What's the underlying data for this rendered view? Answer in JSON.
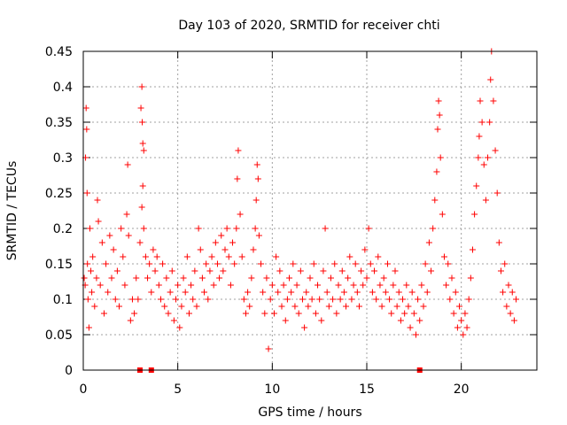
{
  "chart_data": {
    "type": "scatter",
    "title": "Day 103 of 2020, SRMTID for receiver chti",
    "xlabel": "GPS time / hours",
    "ylabel": "SRMTID / TECUs",
    "xlim": [
      0,
      24
    ],
    "ylim": [
      0,
      0.45
    ],
    "x_ticks": [
      0,
      5,
      10,
      15,
      20
    ],
    "x_tick_labels": [
      "0",
      "5",
      "10",
      "15",
      "20"
    ],
    "y_ticks": [
      0,
      0.05,
      0.1,
      0.15,
      0.2,
      0.25,
      0.3,
      0.35,
      0.4,
      0.45
    ],
    "y_tick_labels": [
      "0",
      "0.05",
      "0.1",
      "0.15",
      "0.2",
      "0.25",
      "0.3",
      "0.35",
      "0.4",
      "0.45"
    ],
    "grid": true,
    "legend": "none",
    "marker": "+",
    "color": "#ff0000",
    "series": [
      {
        "marker": "+",
        "points": [
          [
            0.05,
            0.13
          ],
          [
            0.1,
            0.12
          ],
          [
            0.12,
            0.3
          ],
          [
            0.15,
            0.37
          ],
          [
            0.18,
            0.34
          ],
          [
            0.2,
            0.25
          ],
          [
            0.22,
            0.15
          ],
          [
            0.25,
            0.1
          ],
          [
            0.3,
            0.06
          ],
          [
            0.35,
            0.2
          ],
          [
            0.4,
            0.14
          ],
          [
            0.45,
            0.11
          ],
          [
            0.5,
            0.16
          ],
          [
            0.6,
            0.09
          ],
          [
            0.7,
            0.13
          ],
          [
            0.75,
            0.24
          ],
          [
            0.8,
            0.21
          ],
          [
            0.9,
            0.12
          ],
          [
            1.0,
            0.18
          ],
          [
            1.1,
            0.08
          ],
          [
            1.2,
            0.15
          ],
          [
            1.3,
            0.11
          ],
          [
            1.4,
            0.19
          ],
          [
            1.5,
            0.13
          ],
          [
            1.6,
            0.17
          ],
          [
            1.7,
            0.1
          ],
          [
            1.8,
            0.14
          ],
          [
            1.9,
            0.09
          ],
          [
            2.0,
            0.2
          ],
          [
            2.1,
            0.16
          ],
          [
            2.2,
            0.12
          ],
          [
            2.3,
            0.22
          ],
          [
            2.35,
            0.29
          ],
          [
            2.4,
            0.19
          ],
          [
            2.5,
            0.07
          ],
          [
            2.6,
            0.1
          ],
          [
            2.7,
            0.08
          ],
          [
            2.8,
            0.13
          ],
          [
            2.9,
            0.1
          ],
          [
            3.0,
            0.18
          ],
          [
            3.1,
            0.23
          ],
          [
            3.15,
            0.26
          ],
          [
            3.2,
            0.2
          ],
          [
            3.3,
            0.16
          ],
          [
            3.4,
            0.13
          ],
          [
            3.5,
            0.15
          ],
          [
            3.6,
            0.11
          ],
          [
            3.7,
            0.17
          ],
          [
            3.8,
            0.14
          ],
          [
            3.9,
            0.16
          ],
          [
            3.05,
            0.37
          ],
          [
            3.1,
            0.4
          ],
          [
            3.12,
            0.35
          ],
          [
            3.15,
            0.32
          ],
          [
            3.2,
            0.31
          ],
          [
            4.0,
            0.12
          ],
          [
            4.1,
            0.1
          ],
          [
            4.2,
            0.15
          ],
          [
            4.3,
            0.09
          ],
          [
            4.4,
            0.13
          ],
          [
            4.5,
            0.08
          ],
          [
            4.6,
            0.11
          ],
          [
            4.7,
            0.14
          ],
          [
            4.8,
            0.07
          ],
          [
            4.9,
            0.1
          ],
          [
            5.0,
            0.12
          ],
          [
            5.1,
            0.06
          ],
          [
            5.2,
            0.09
          ],
          [
            5.3,
            0.13
          ],
          [
            5.4,
            0.11
          ],
          [
            5.5,
            0.16
          ],
          [
            5.6,
            0.08
          ],
          [
            5.7,
            0.12
          ],
          [
            5.8,
            0.1
          ],
          [
            5.9,
            0.14
          ],
          [
            6.0,
            0.09
          ],
          [
            6.1,
            0.2
          ],
          [
            6.2,
            0.17
          ],
          [
            6.3,
            0.13
          ],
          [
            6.4,
            0.11
          ],
          [
            6.5,
            0.15
          ],
          [
            6.6,
            0.1
          ],
          [
            6.7,
            0.14
          ],
          [
            6.8,
            0.16
          ],
          [
            6.9,
            0.12
          ],
          [
            7.0,
            0.18
          ],
          [
            7.1,
            0.15
          ],
          [
            7.2,
            0.13
          ],
          [
            7.3,
            0.19
          ],
          [
            7.4,
            0.14
          ],
          [
            7.5,
            0.17
          ],
          [
            7.6,
            0.2
          ],
          [
            7.7,
            0.16
          ],
          [
            7.8,
            0.12
          ],
          [
            7.9,
            0.18
          ],
          [
            8.0,
            0.15
          ],
          [
            8.1,
            0.2
          ],
          [
            8.15,
            0.27
          ],
          [
            8.2,
            0.31
          ],
          [
            8.3,
            0.22
          ],
          [
            8.4,
            0.16
          ],
          [
            8.5,
            0.1
          ],
          [
            8.6,
            0.08
          ],
          [
            8.7,
            0.11
          ],
          [
            8.8,
            0.09
          ],
          [
            8.9,
            0.13
          ],
          [
            9.0,
            0.17
          ],
          [
            9.1,
            0.2
          ],
          [
            9.15,
            0.24
          ],
          [
            9.2,
            0.29
          ],
          [
            9.25,
            0.27
          ],
          [
            9.3,
            0.19
          ],
          [
            9.4,
            0.15
          ],
          [
            9.5,
            0.11
          ],
          [
            9.6,
            0.08
          ],
          [
            9.7,
            0.13
          ],
          [
            9.8,
            0.03
          ],
          [
            9.9,
            0.1
          ],
          [
            10.0,
            0.12
          ],
          [
            10.1,
            0.08
          ],
          [
            10.2,
            0.16
          ],
          [
            10.3,
            0.11
          ],
          [
            10.4,
            0.14
          ],
          [
            10.5,
            0.09
          ],
          [
            10.6,
            0.12
          ],
          [
            10.7,
            0.07
          ],
          [
            10.8,
            0.1
          ],
          [
            10.9,
            0.13
          ],
          [
            11.0,
            0.11
          ],
          [
            11.1,
            0.15
          ],
          [
            11.2,
            0.09
          ],
          [
            11.3,
            0.12
          ],
          [
            11.4,
            0.08
          ],
          [
            11.5,
            0.14
          ],
          [
            11.6,
            0.1
          ],
          [
            11.7,
            0.06
          ],
          [
            11.8,
            0.11
          ],
          [
            11.9,
            0.09
          ],
          [
            12.0,
            0.13
          ],
          [
            12.1,
            0.1
          ],
          [
            12.2,
            0.15
          ],
          [
            12.3,
            0.08
          ],
          [
            12.4,
            0.12
          ],
          [
            12.5,
            0.1
          ],
          [
            12.6,
            0.07
          ],
          [
            12.7,
            0.14
          ],
          [
            12.8,
            0.2
          ],
          [
            12.9,
            0.11
          ],
          [
            13.0,
            0.09
          ],
          [
            13.1,
            0.13
          ],
          [
            13.2,
            0.1
          ],
          [
            13.3,
            0.15
          ],
          [
            13.4,
            0.08
          ],
          [
            13.5,
            0.12
          ],
          [
            13.6,
            0.1
          ],
          [
            13.7,
            0.14
          ],
          [
            13.8,
            0.11
          ],
          [
            13.9,
            0.09
          ],
          [
            14.0,
            0.13
          ],
          [
            14.1,
            0.16
          ],
          [
            14.2,
            0.1
          ],
          [
            14.3,
            0.12
          ],
          [
            14.4,
            0.15
          ],
          [
            14.5,
            0.11
          ],
          [
            14.6,
            0.09
          ],
          [
            14.7,
            0.14
          ],
          [
            14.8,
            0.12
          ],
          [
            14.9,
            0.17
          ],
          [
            15.0,
            0.13
          ],
          [
            15.1,
            0.2
          ],
          [
            15.2,
            0.15
          ],
          [
            15.3,
            0.11
          ],
          [
            15.4,
            0.14
          ],
          [
            15.5,
            0.1
          ],
          [
            15.6,
            0.16
          ],
          [
            15.7,
            0.12
          ],
          [
            15.8,
            0.09
          ],
          [
            15.9,
            0.13
          ],
          [
            16.0,
            0.11
          ],
          [
            16.1,
            0.15
          ],
          [
            16.2,
            0.1
          ],
          [
            16.3,
            0.08
          ],
          [
            16.4,
            0.12
          ],
          [
            16.5,
            0.14
          ],
          [
            16.6,
            0.09
          ],
          [
            16.7,
            0.11
          ],
          [
            16.8,
            0.07
          ],
          [
            16.9,
            0.1
          ],
          [
            17.0,
            0.08
          ],
          [
            17.1,
            0.12
          ],
          [
            17.2,
            0.09
          ],
          [
            17.3,
            0.06
          ],
          [
            17.4,
            0.11
          ],
          [
            17.5,
            0.08
          ],
          [
            17.6,
            0.05
          ],
          [
            17.7,
            0.1
          ],
          [
            17.8,
            0.07
          ],
          [
            17.9,
            0.12
          ],
          [
            18.0,
            0.09
          ],
          [
            18.1,
            0.15
          ],
          [
            18.2,
            0.11
          ],
          [
            18.3,
            0.18
          ],
          [
            18.4,
            0.14
          ],
          [
            18.5,
            0.2
          ],
          [
            18.6,
            0.24
          ],
          [
            18.7,
            0.28
          ],
          [
            18.75,
            0.34
          ],
          [
            18.8,
            0.38
          ],
          [
            18.85,
            0.36
          ],
          [
            18.9,
            0.3
          ],
          [
            19.0,
            0.22
          ],
          [
            19.1,
            0.16
          ],
          [
            19.2,
            0.12
          ],
          [
            19.3,
            0.15
          ],
          [
            19.4,
            0.1
          ],
          [
            19.5,
            0.13
          ],
          [
            19.6,
            0.08
          ],
          [
            19.7,
            0.11
          ],
          [
            19.8,
            0.06
          ],
          [
            19.9,
            0.09
          ],
          [
            20.0,
            0.07
          ],
          [
            20.1,
            0.05
          ],
          [
            20.2,
            0.08
          ],
          [
            20.3,
            0.06
          ],
          [
            20.4,
            0.1
          ],
          [
            20.5,
            0.13
          ],
          [
            20.6,
            0.17
          ],
          [
            20.7,
            0.22
          ],
          [
            20.8,
            0.26
          ],
          [
            20.9,
            0.3
          ],
          [
            20.95,
            0.33
          ],
          [
            21.0,
            0.38
          ],
          [
            21.1,
            0.35
          ],
          [
            21.2,
            0.29
          ],
          [
            21.3,
            0.24
          ],
          [
            21.4,
            0.3
          ],
          [
            21.5,
            0.35
          ],
          [
            21.55,
            0.41
          ],
          [
            21.6,
            0.45
          ],
          [
            21.7,
            0.38
          ],
          [
            21.8,
            0.31
          ],
          [
            21.9,
            0.25
          ],
          [
            22.0,
            0.18
          ],
          [
            22.1,
            0.14
          ],
          [
            22.2,
            0.11
          ],
          [
            22.3,
            0.15
          ],
          [
            22.4,
            0.09
          ],
          [
            22.5,
            0.12
          ],
          [
            22.6,
            0.08
          ],
          [
            22.7,
            0.11
          ],
          [
            22.8,
            0.07
          ],
          [
            22.9,
            0.1
          ]
        ]
      },
      {
        "marker": "square",
        "points": [
          [
            3.0,
            0.0
          ],
          [
            3.6,
            0.0
          ],
          [
            17.8,
            0.0
          ]
        ]
      }
    ]
  }
}
